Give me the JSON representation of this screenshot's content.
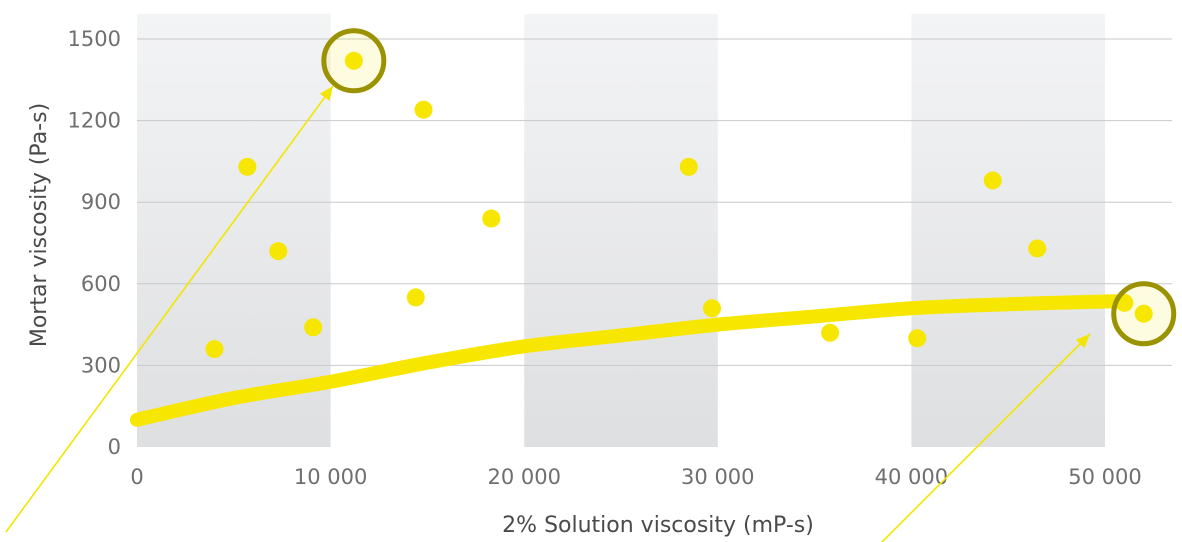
{
  "chart_data": {
    "type": "scatter",
    "xlabel": "2% Solution viscosity (mP-s)",
    "ylabel": "Mortar viscosity (Pa-s)",
    "xlim": [
      0,
      53000
    ],
    "ylim": [
      0,
      1500
    ],
    "x_ticks": [
      {
        "value": 0,
        "label": "0"
      },
      {
        "value": 10000,
        "label": "10 000"
      },
      {
        "value": 20000,
        "label": "20 000"
      },
      {
        "value": 30000,
        "label": "30 000"
      },
      {
        "value": 40000,
        "label": "40 000"
      },
      {
        "value": 50000,
        "label": "50 000"
      }
    ],
    "y_ticks": [
      {
        "value": 0,
        "label": "0"
      },
      {
        "value": 300,
        "label": "300"
      },
      {
        "value": 600,
        "label": "600"
      },
      {
        "value": 900,
        "label": "900"
      },
      {
        "value": 1200,
        "label": "1200"
      },
      {
        "value": 1500,
        "label": "1500"
      }
    ],
    "grid": "horizontal",
    "shaded_bands_x": [
      [
        0,
        10000
      ],
      [
        20000,
        30000
      ],
      [
        40000,
        50000
      ]
    ],
    "points": [
      {
        "x": 4000,
        "y": 360
      },
      {
        "x": 5700,
        "y": 1030
      },
      {
        "x": 7300,
        "y": 720
      },
      {
        "x": 9100,
        "y": 440
      },
      {
        "x": 11200,
        "y": 1420
      },
      {
        "x": 14400,
        "y": 550
      },
      {
        "x": 14800,
        "y": 1240
      },
      {
        "x": 18300,
        "y": 840
      },
      {
        "x": 28500,
        "y": 1030
      },
      {
        "x": 29700,
        "y": 510
      },
      {
        "x": 35800,
        "y": 420
      },
      {
        "x": 40300,
        "y": 400
      },
      {
        "x": 44200,
        "y": 980
      },
      {
        "x": 46500,
        "y": 730
      },
      {
        "x": 51000,
        "y": 530
      },
      {
        "x": 52000,
        "y": 490
      }
    ],
    "trend_line": [
      {
        "x": 0,
        "y": 100
      },
      {
        "x": 5000,
        "y": 180
      },
      {
        "x": 10000,
        "y": 240
      },
      {
        "x": 15000,
        "y": 310
      },
      {
        "x": 20000,
        "y": 370
      },
      {
        "x": 25000,
        "y": 410
      },
      {
        "x": 30000,
        "y": 450
      },
      {
        "x": 35000,
        "y": 480
      },
      {
        "x": 40000,
        "y": 510
      },
      {
        "x": 45000,
        "y": 525
      },
      {
        "x": 50000,
        "y": 535
      },
      {
        "x": 51000,
        "y": 535
      }
    ],
    "highlighted_points": [
      {
        "x": 11200,
        "y": 1420
      },
      {
        "x": 52000,
        "y": 490
      }
    ],
    "colors": {
      "point": "#f7e600",
      "trend": "#f7e600",
      "highlight_ring": "#9a9200",
      "arrow": "#f2e600",
      "band": "#e5e6e8",
      "grid": "#c9c9c9"
    }
  }
}
